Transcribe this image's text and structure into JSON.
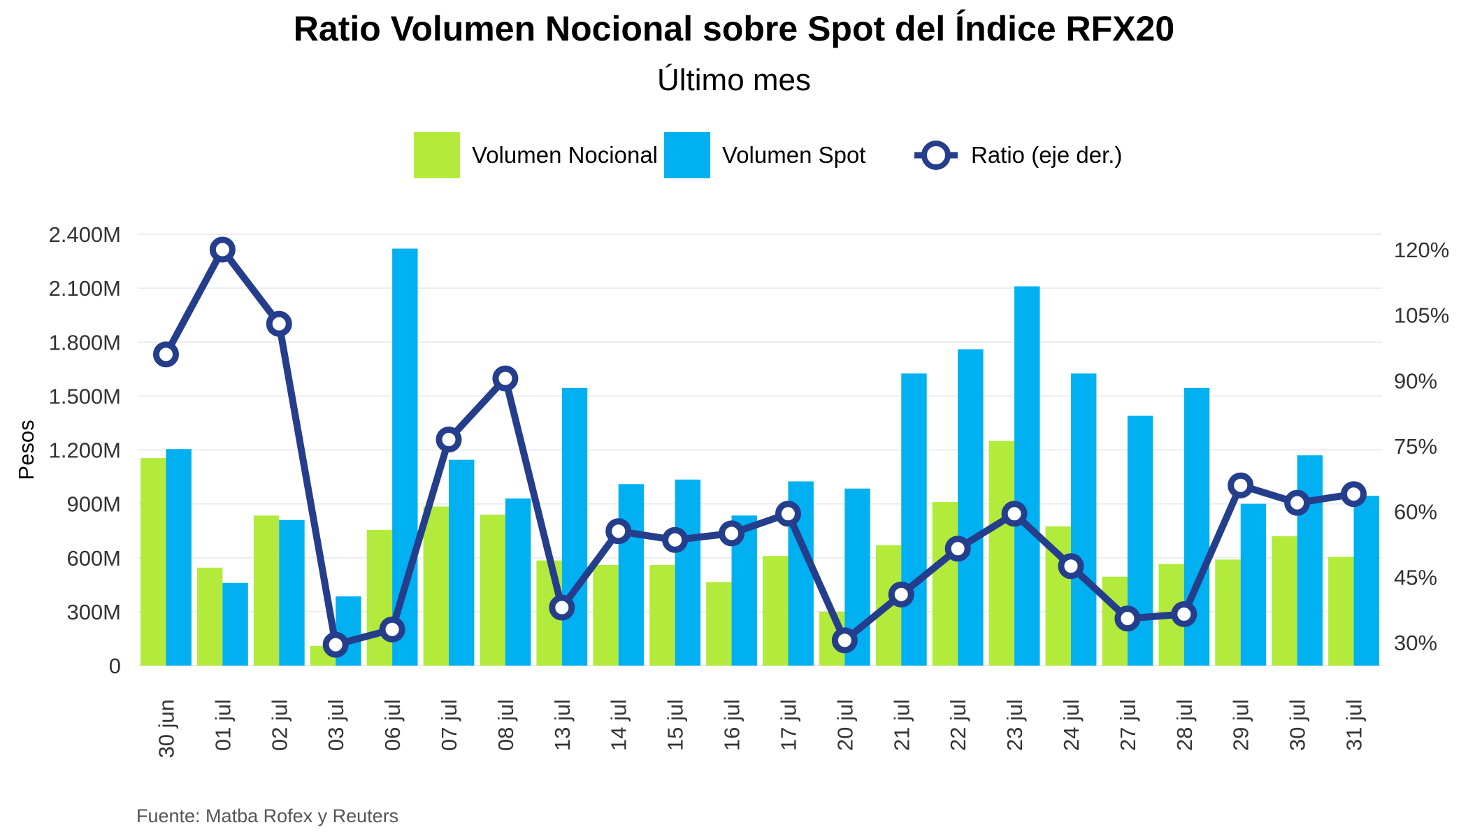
{
  "chart_data": {
    "type": "bar",
    "title": "Ratio Volumen Nocional sobre Spot del Índice RFX20",
    "subtitle": "Último mes",
    "ylabel": "Pesos",
    "y2label": "",
    "source": "Fuente: Matba Rofex y Reuters",
    "categories": [
      "30 jun",
      "01 jul",
      "02 jul",
      "03 jul",
      "06 jul",
      "07 jul",
      "08 jul",
      "13 jul",
      "14 jul",
      "15 jul",
      "16 jul",
      "17 jul",
      "20 jul",
      "21 jul",
      "22 jul",
      "23 jul",
      "24 jul",
      "27 jul",
      "28 jul",
      "29 jul",
      "30 jul",
      "31 jul"
    ],
    "series": [
      {
        "name": "Volumen Nocional",
        "kind": "bar",
        "axis": "left",
        "color": "#b2eb3c",
        "values": [
          1155,
          545,
          835,
          110,
          755,
          885,
          840,
          585,
          560,
          560,
          465,
          610,
          300,
          670,
          910,
          1250,
          775,
          495,
          565,
          590,
          720,
          605
        ]
      },
      {
        "name": "Volumen Spot",
        "kind": "bar",
        "axis": "left",
        "color": "#00b0f0",
        "values": [
          1205,
          460,
          810,
          385,
          2320,
          1145,
          930,
          1545,
          1010,
          1035,
          835,
          1025,
          985,
          1625,
          1760,
          2110,
          1625,
          1390,
          1545,
          900,
          1170,
          945
        ]
      },
      {
        "name": "Ratio (eje der.)",
        "kind": "line",
        "axis": "right",
        "color": "#253e8c",
        "values": [
          96,
          120,
          103,
          29.5,
          33,
          76.5,
          90.5,
          38,
          55.5,
          53.5,
          55,
          59.5,
          30.5,
          41,
          51.5,
          59.5,
          47.5,
          35.5,
          36.5,
          66,
          62,
          64
        ]
      }
    ],
    "y_left": {
      "min": 0,
      "max": 2400,
      "ticks": [
        0,
        300,
        600,
        900,
        1200,
        1500,
        1800,
        2100,
        2400
      ],
      "tick_labels": [
        "0",
        "300M",
        "600M",
        "900M",
        "1.200M",
        "1.500M",
        "1.800M",
        "2.100M",
        "2.400M"
      ]
    },
    "y_right": {
      "min": 25,
      "max": 123,
      "ticks": [
        30,
        45,
        60,
        75,
        90,
        105,
        120
      ],
      "tick_labels": [
        "30%",
        "45%",
        "60%",
        "75%",
        "90%",
        "105%",
        "120%"
      ]
    },
    "grid": true,
    "legend_position": "top"
  }
}
